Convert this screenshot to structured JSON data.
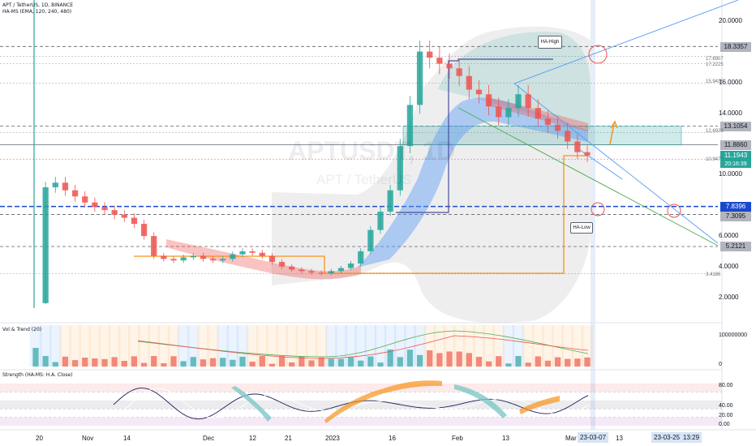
{
  "chart_info": {
    "title_line": "APT / TetherUS, 1D, BINANCE",
    "indicator_line": "HA-MS (EMA, 120, 240, 480)",
    "watermark_symbol": "APTUSDT, 1D",
    "watermark_name": "APT / TetherUS"
  },
  "annotations": {
    "ha_high": "HA-High",
    "ha_low": "HA-Low"
  },
  "price_axis": {
    "ticks": [
      "20.0000",
      "16.0000",
      "14.0000",
      "10.0000",
      "6.0000",
      "4.0000",
      "2.0000"
    ],
    "boxes": [
      {
        "text": "18.3357",
        "color": "#b2b5be"
      },
      {
        "text": "13.1054",
        "color": "#b2b5be"
      },
      {
        "text": "11.8860",
        "color": "#b2b5be"
      },
      {
        "text": "11.1943",
        "color": "#26a69a"
      },
      {
        "text": "20:16:39",
        "color": "#26a69a"
      },
      {
        "text": "7.8396",
        "color": "#1848cc"
      },
      {
        "text": "7.3095",
        "color": "#b2b5be"
      },
      {
        "text": "5.2121",
        "color": "#b2b5be"
      }
    ],
    "small_labels": [
      "17.6907",
      "17.2225",
      "15.9415",
      "12.6923",
      "10.9471",
      "3.4186"
    ]
  },
  "vol_panel": {
    "title": "Vol & Trend (20)",
    "ticks": [
      "100000000",
      "0"
    ]
  },
  "strength_panel": {
    "title": "Strength (HA-MS: H.A. Close)",
    "ticks": [
      "80.00",
      "40.00",
      "20.00",
      "0.00"
    ]
  },
  "time_axis": {
    "ticks": [
      "20",
      "Nov",
      "14",
      "Dec",
      "12",
      "21",
      "2023",
      "16",
      "Feb",
      "13",
      "Mar",
      "13"
    ],
    "highlight": [
      "23-03-07",
      "23-03-25",
      "13:29"
    ]
  },
  "colors": {
    "up": "#26a69a",
    "down": "#ef5350",
    "orange": "#f7931a",
    "blue": "#1848cc",
    "trendline": "#5b9cf6"
  },
  "chart_data": {
    "type": "candlestick",
    "symbol": "APTUSDT",
    "interval": "1D",
    "y_range": [
      1,
      22
    ],
    "close_series": [
      1.5,
      9.1,
      9.4,
      8.9,
      8.5,
      8.1,
      7.8,
      7.6,
      7.3,
      7.1,
      6.7,
      5.9,
      4.6,
      4.4,
      4.3,
      4.5,
      4.6,
      4.4,
      4.3,
      4.4,
      4.7,
      4.9,
      4.8,
      4.6,
      4.2,
      3.9,
      3.7,
      3.6,
      3.5,
      3.45,
      3.6,
      3.8,
      4.1,
      4.9,
      6.3,
      7.5,
      8.9,
      11.8,
      14.5,
      18.0,
      17.6,
      17.2,
      16.9,
      16.4,
      15.5,
      15.2,
      14.4,
      13.7,
      14.3,
      15.2,
      14.3,
      13.6,
      13.2,
      12.8,
      12.1,
      11.4,
      11.1943
    ],
    "horizontal_levels": [
      18.3357,
      17.6907,
      17.2225,
      15.9415,
      13.1054,
      12.6923,
      11.886,
      10.9471,
      7.8396,
      7.3095,
      5.2121,
      3.4186
    ],
    "volume_ticks": [
      0,
      100000000
    ],
    "strength_ticks": [
      0,
      20,
      40,
      80
    ]
  }
}
